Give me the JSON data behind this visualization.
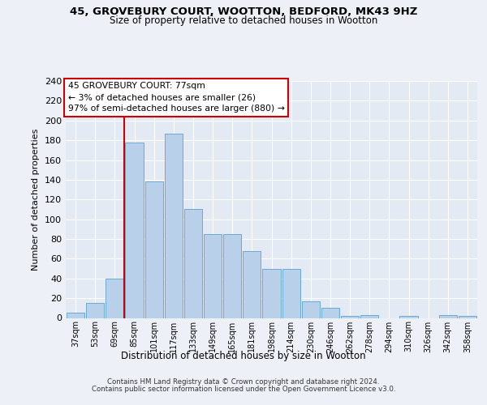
{
  "title_line1": "45, GROVEBURY COURT, WOOTTON, BEDFORD, MK43 9HZ",
  "title_line2": "Size of property relative to detached houses in Wootton",
  "xlabel": "Distribution of detached houses by size in Wootton",
  "ylabel": "Number of detached properties",
  "categories": [
    "37sqm",
    "53sqm",
    "69sqm",
    "85sqm",
    "101sqm",
    "117sqm",
    "133sqm",
    "149sqm",
    "165sqm",
    "181sqm",
    "198sqm",
    "214sqm",
    "230sqm",
    "246sqm",
    "262sqm",
    "278sqm",
    "294sqm",
    "310sqm",
    "326sqm",
    "342sqm",
    "358sqm"
  ],
  "values": [
    5,
    15,
    40,
    178,
    138,
    187,
    110,
    85,
    85,
    68,
    50,
    50,
    17,
    10,
    2,
    3,
    0,
    2,
    0,
    3,
    2
  ],
  "bar_color": "#b8d0ea",
  "bar_edge_color": "#6aaad4",
  "vline_x": 2.5,
  "vline_color": "#cc0000",
  "annotation_title": "45 GROVEBURY COURT: 77sqm",
  "annotation_line2": "← 3% of detached houses are smaller (26)",
  "annotation_line3": "97% of semi-detached houses are larger (880) →",
  "annotation_box_color": "#ffffff",
  "annotation_box_edge_color": "#cc0000",
  "ylim": [
    0,
    240
  ],
  "yticks": [
    0,
    20,
    40,
    60,
    80,
    100,
    120,
    140,
    160,
    180,
    200,
    220,
    240
  ],
  "footer_line1": "Contains HM Land Registry data © Crown copyright and database right 2024.",
  "footer_line2": "Contains public sector information licensed under the Open Government Licence v3.0.",
  "background_color": "#edf1f7",
  "plot_bg_color": "#e4eaf4",
  "grid_color": "#ffffff"
}
